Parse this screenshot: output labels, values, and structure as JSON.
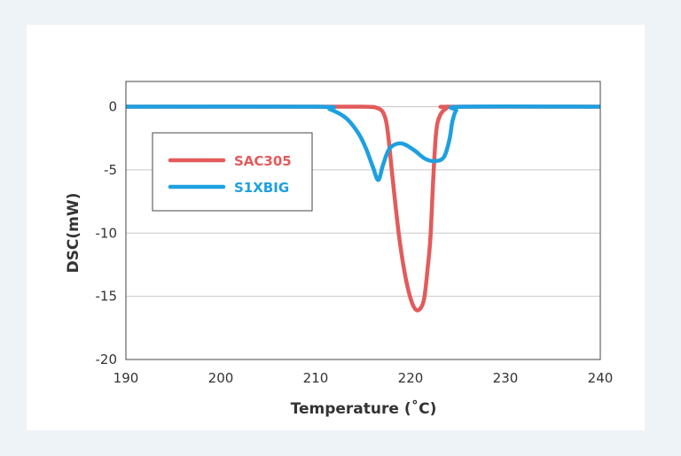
{
  "chart_data": {
    "type": "line",
    "title": "",
    "xlabel": "Temperature (˚C)",
    "ylabel": "DSC(mW)",
    "xlim": [
      190,
      240
    ],
    "ylim": [
      -20,
      2
    ],
    "xticks": [
      190,
      200,
      210,
      220,
      230,
      240
    ],
    "yticks": [
      0,
      -5,
      -10,
      -15,
      -20
    ],
    "grid": "horizontal",
    "legend_position": "upper-left",
    "series": [
      {
        "name": "SAC305",
        "color": "#e35b5b",
        "points": [
          [
            190,
            0
          ],
          [
            210,
            0
          ],
          [
            215,
            0
          ],
          [
            216.5,
            -0.1
          ],
          [
            217.2,
            -0.6
          ],
          [
            217.6,
            -2
          ],
          [
            218.1,
            -5.6
          ],
          [
            218.8,
            -10.3
          ],
          [
            219.5,
            -13.6
          ],
          [
            220.2,
            -15.6
          ],
          [
            220.8,
            -16.1
          ],
          [
            221.4,
            -15.3
          ],
          [
            221.8,
            -12.8
          ],
          [
            222.1,
            -10.3
          ],
          [
            222.4,
            -5.6
          ],
          [
            222.7,
            -2
          ],
          [
            223.1,
            -0.7
          ],
          [
            223.8,
            -0.1
          ],
          [
            224.5,
            0
          ],
          [
            240,
            0
          ]
        ]
      },
      {
        "name": "S1XBIG",
        "color": "#1ea0e0",
        "points": [
          [
            190,
            0
          ],
          [
            210,
            0
          ],
          [
            211.5,
            -0.2
          ],
          [
            213.2,
            -0.9
          ],
          [
            214.5,
            -2.1
          ],
          [
            215.3,
            -3.3
          ],
          [
            216,
            -4.7
          ],
          [
            216.6,
            -5.8
          ],
          [
            217.1,
            -4.6
          ],
          [
            217.8,
            -3.3
          ],
          [
            219,
            -2.9
          ],
          [
            220.3,
            -3.4
          ],
          [
            221.5,
            -4.1
          ],
          [
            222.5,
            -4.3
          ],
          [
            223.5,
            -4
          ],
          [
            224.1,
            -2.6
          ],
          [
            224.4,
            -1.2
          ],
          [
            224.8,
            -0.3
          ],
          [
            225.5,
            0
          ],
          [
            240,
            0
          ]
        ]
      }
    ]
  }
}
